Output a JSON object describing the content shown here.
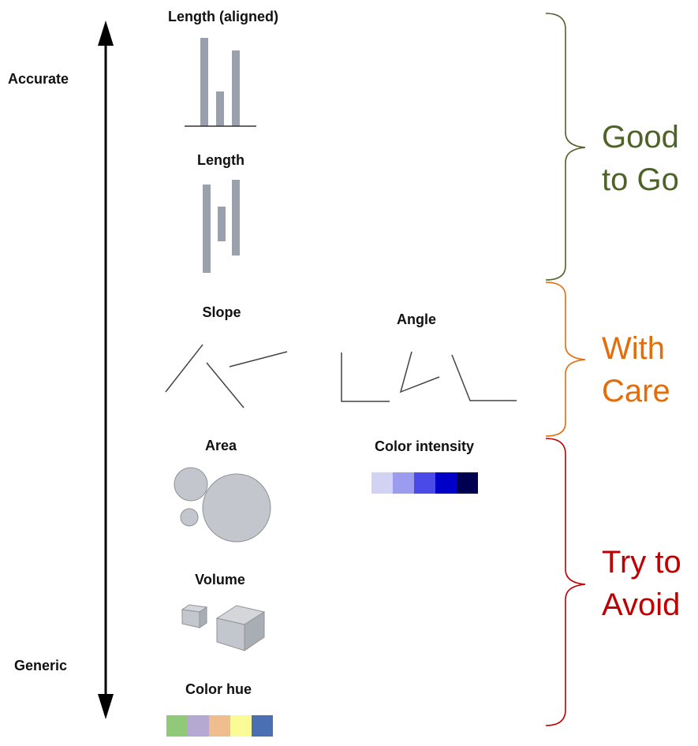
{
  "axis": {
    "top_label": "Accurate",
    "bottom_label": "Generic"
  },
  "channels": [
    {
      "id": "length-aligned",
      "label": "Length (aligned)"
    },
    {
      "id": "length",
      "label": "Length"
    },
    {
      "id": "slope",
      "label": "Slope"
    },
    {
      "id": "angle",
      "label": "Angle"
    },
    {
      "id": "area",
      "label": "Area"
    },
    {
      "id": "color-intensity",
      "label": "Color intensity"
    },
    {
      "id": "volume",
      "label": "Volume"
    },
    {
      "id": "color-hue",
      "label": "Color hue"
    }
  ],
  "groups": [
    {
      "id": "good",
      "label": "Good\nto Go",
      "color": "#4f6228"
    },
    {
      "id": "care",
      "label": "With\nCare",
      "color": "#e46c0a"
    },
    {
      "id": "avoid",
      "label": "Try to\nAvoid",
      "color": "#c00000"
    }
  ],
  "colors": {
    "bar_gray": "#9aa0ac",
    "shape_gray": "#c3c6cc",
    "intensity": [
      "#d2d2f5",
      "#9b9bf0",
      "#4a4ae8",
      "#0000c8",
      "#000050"
    ],
    "hue": [
      "#90c97a",
      "#b5a9d4",
      "#f0bd8e",
      "#fafa96",
      "#4a6fb3"
    ]
  }
}
